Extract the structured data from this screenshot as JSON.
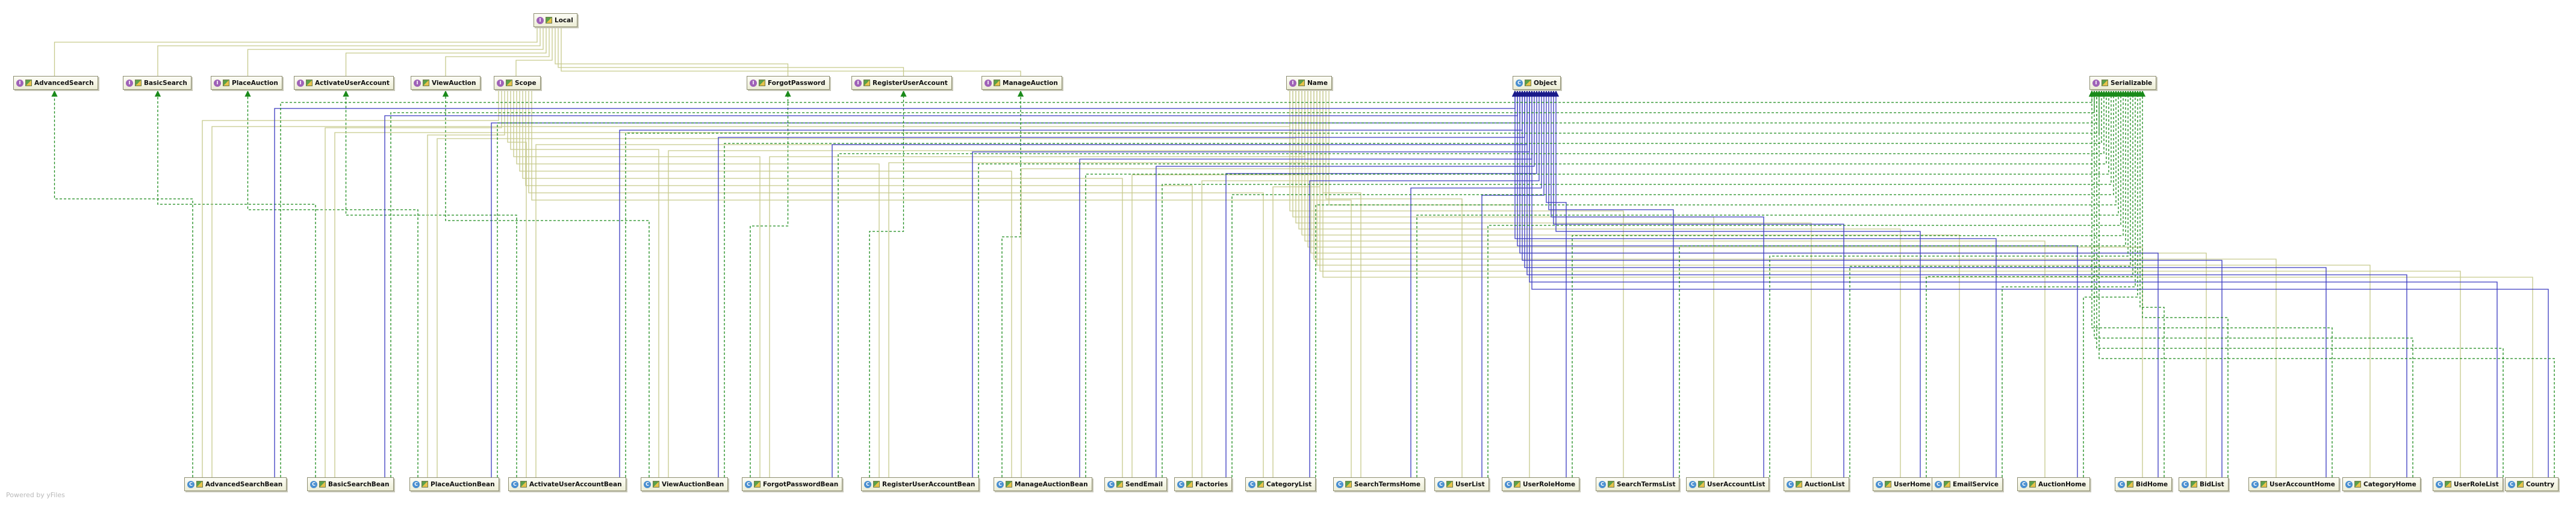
{
  "diagram": {
    "footer": "Powered by yFiles",
    "colors": {
      "uses_edge": "#c6c98c",
      "extends_edge": "#3a3ac0",
      "implements_edge": "#1a8a1a",
      "node_border": "#8d8d70"
    },
    "icon_names": {
      "interface": "interface-icon",
      "class": "class-icon",
      "visibility": "public-visibility-icon"
    },
    "top_nodes": [
      {
        "id": "Local",
        "label": "Local",
        "kind": "interface"
      }
    ],
    "interfaces": [
      {
        "id": "AdvancedSearch",
        "label": "AdvancedSearch",
        "kind": "interface"
      },
      {
        "id": "BasicSearch",
        "label": "BasicSearch",
        "kind": "interface"
      },
      {
        "id": "PlaceAuction",
        "label": "PlaceAuction",
        "kind": "interface"
      },
      {
        "id": "ActivateUserAccount",
        "label": "ActivateUserAccount",
        "kind": "interface"
      },
      {
        "id": "ViewAuction",
        "label": "ViewAuction",
        "kind": "interface"
      },
      {
        "id": "Scope",
        "label": "Scope",
        "kind": "interface"
      },
      {
        "id": "ForgotPassword",
        "label": "ForgotPassword",
        "kind": "interface"
      },
      {
        "id": "RegisterUserAccount",
        "label": "RegisterUserAccount",
        "kind": "interface"
      },
      {
        "id": "ManageAuction",
        "label": "ManageAuction",
        "kind": "interface"
      },
      {
        "id": "Name",
        "label": "Name",
        "kind": "interface"
      },
      {
        "id": "Object",
        "label": "Object",
        "kind": "class"
      },
      {
        "id": "Serializable",
        "label": "Serializable",
        "kind": "interface"
      }
    ],
    "classes": [
      {
        "id": "AdvancedSearchBean",
        "label": "AdvancedSearchBean",
        "kind": "class"
      },
      {
        "id": "BasicSearchBean",
        "label": "BasicSearchBean",
        "kind": "class"
      },
      {
        "id": "PlaceAuctionBean",
        "label": "PlaceAuctionBean",
        "kind": "class"
      },
      {
        "id": "ActivateUserAccountBean",
        "label": "ActivateUserAccountBean",
        "kind": "class"
      },
      {
        "id": "ViewAuctionBean",
        "label": "ViewAuctionBean",
        "kind": "class"
      },
      {
        "id": "ForgotPasswordBean",
        "label": "ForgotPasswordBean",
        "kind": "class"
      },
      {
        "id": "RegisterUserAccountBean",
        "label": "RegisterUserAccountBean",
        "kind": "class"
      },
      {
        "id": "ManageAuctionBean",
        "label": "ManageAuctionBean",
        "kind": "class"
      },
      {
        "id": "SendEmail",
        "label": "SendEmail",
        "kind": "class"
      },
      {
        "id": "Factories",
        "label": "Factories",
        "kind": "class"
      },
      {
        "id": "CategoryList",
        "label": "CategoryList",
        "kind": "class"
      },
      {
        "id": "SearchTermsHome",
        "label": "SearchTermsHome",
        "kind": "class"
      },
      {
        "id": "UserList",
        "label": "UserList",
        "kind": "class"
      },
      {
        "id": "UserRoleHome",
        "label": "UserRoleHome",
        "kind": "class"
      },
      {
        "id": "SearchTermsList",
        "label": "SearchTermsList",
        "kind": "class"
      },
      {
        "id": "UserAccountList",
        "label": "UserAccountList",
        "kind": "class"
      },
      {
        "id": "AuctionList",
        "label": "AuctionList",
        "kind": "class"
      },
      {
        "id": "UserHome",
        "label": "UserHome",
        "kind": "class"
      },
      {
        "id": "EmailService",
        "label": "EmailService",
        "kind": "class"
      },
      {
        "id": "AuctionHome",
        "label": "AuctionHome",
        "kind": "class"
      },
      {
        "id": "BidHome",
        "label": "BidHome",
        "kind": "class"
      },
      {
        "id": "BidList",
        "label": "BidList",
        "kind": "class"
      },
      {
        "id": "UserAccountHome",
        "label": "UserAccountHome",
        "kind": "class"
      },
      {
        "id": "CategoryHome",
        "label": "CategoryHome",
        "kind": "class"
      },
      {
        "id": "UserRoleList",
        "label": "UserRoleList",
        "kind": "class"
      },
      {
        "id": "Country",
        "label": "Country",
        "kind": "class"
      }
    ],
    "edges": {
      "extends_local": [
        "AdvancedSearch",
        "BasicSearch",
        "PlaceAuction",
        "ActivateUserAccount",
        "ViewAuction",
        "Scope",
        "ForgotPassword",
        "RegisterUserAccount",
        "ManageAuction"
      ],
      "implements": [
        [
          "AdvancedSearchBean",
          "AdvancedSearch"
        ],
        [
          "BasicSearchBean",
          "BasicSearch"
        ],
        [
          "PlaceAuctionBean",
          "PlaceAuction"
        ],
        [
          "ActivateUserAccountBean",
          "ActivateUserAccount"
        ],
        [
          "ViewAuctionBean",
          "ViewAuction"
        ],
        [
          "ForgotPasswordBean",
          "ForgotPassword"
        ],
        [
          "RegisterUserAccountBean",
          "RegisterUserAccount"
        ],
        [
          "ManageAuctionBean",
          "ManageAuction"
        ]
      ],
      "scope_users": [
        "AdvancedSearchBean",
        "BasicSearchBean",
        "PlaceAuctionBean",
        "ActivateUserAccountBean",
        "ViewAuctionBean",
        "ForgotPasswordBean",
        "RegisterUserAccountBean",
        "ManageAuctionBean",
        "SendEmail",
        "Factories",
        "CategoryList",
        "SearchTermsHome"
      ],
      "name_users": [
        "AdvancedSearchBean",
        "BasicSearchBean",
        "PlaceAuctionBean",
        "ActivateUserAccountBean",
        "ViewAuctionBean",
        "ForgotPasswordBean",
        "RegisterUserAccountBean",
        "ManageAuctionBean",
        "SendEmail",
        "Factories",
        "CategoryList",
        "SearchTermsHome",
        "UserList",
        "UserRoleHome",
        "SearchTermsList",
        "UserAccountList",
        "AuctionList",
        "UserHome",
        "EmailService",
        "AuctionHome",
        "BidHome",
        "BidList",
        "UserAccountHome",
        "CategoryHome",
        "UserRoleList",
        "Country"
      ],
      "object_subclasses": [
        "AdvancedSearchBean",
        "BasicSearchBean",
        "PlaceAuctionBean",
        "ActivateUserAccountBean",
        "ViewAuctionBean",
        "ForgotPasswordBean",
        "RegisterUserAccountBean",
        "ManageAuctionBean",
        "SendEmail",
        "Factories",
        "CategoryList",
        "SearchTermsHome",
        "UserList",
        "UserRoleHome",
        "SearchTermsList",
        "UserAccountList",
        "AuctionList",
        "UserHome",
        "EmailService",
        "AuctionHome",
        "BidHome",
        "BidList",
        "UserAccountHome",
        "CategoryHome",
        "UserRoleList",
        "Country"
      ],
      "serializable_implementors": [
        "AdvancedSearchBean",
        "BasicSearchBean",
        "PlaceAuctionBean",
        "ActivateUserAccountBean",
        "ViewAuctionBean",
        "ForgotPasswordBean",
        "RegisterUserAccountBean",
        "ManageAuctionBean",
        "SendEmail",
        "Factories",
        "CategoryList",
        "SearchTermsHome",
        "UserList",
        "UserRoleHome",
        "SearchTermsList",
        "UserAccountList",
        "AuctionList",
        "UserHome",
        "EmailService",
        "AuctionHome",
        "BidHome",
        "BidList",
        "UserAccountHome",
        "CategoryHome",
        "UserRoleList",
        "Country"
      ]
    }
  }
}
